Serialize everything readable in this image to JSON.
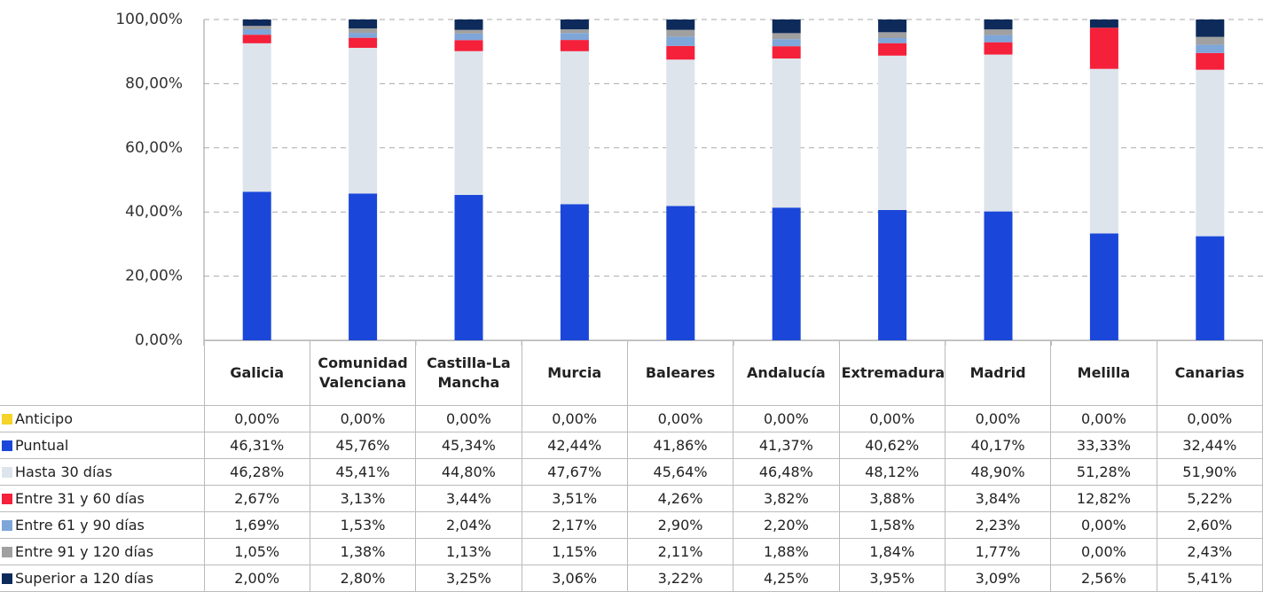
{
  "chart_data": {
    "type": "bar",
    "stacked": true,
    "categories": [
      "Galicia",
      "Comunidad Valenciana",
      "Castilla-La Mancha",
      "Murcia",
      "Baleares",
      "Andalucía",
      "Extremadura",
      "Madrid",
      "Melilla",
      "Canarias"
    ],
    "series": [
      {
        "name": "Anticipo",
        "color": "#f5d328",
        "values": [
          0,
          0,
          0,
          0,
          0,
          0,
          0,
          0,
          0,
          0
        ],
        "value_labels": [
          "0,00%",
          "0,00%",
          "0,00%",
          "0,00%",
          "0,00%",
          "0,00%",
          "0,00%",
          "0,00%",
          "0,00%",
          "0,00%"
        ]
      },
      {
        "name": "Puntual",
        "color": "#1a47d9",
        "values": [
          46.31,
          45.76,
          45.34,
          42.44,
          41.86,
          41.37,
          40.62,
          40.17,
          33.33,
          32.44
        ],
        "value_labels": [
          "46,31%",
          "45,76%",
          "45,34%",
          "42,44%",
          "41,86%",
          "41,37%",
          "40,62%",
          "40,17%",
          "33,33%",
          "32,44%"
        ]
      },
      {
        "name": "Hasta 30 días",
        "color": "#dde4ec",
        "values": [
          46.28,
          45.41,
          44.8,
          47.67,
          45.64,
          46.48,
          48.12,
          48.9,
          51.28,
          51.9
        ],
        "value_labels": [
          "46,28%",
          "45,41%",
          "44,80%",
          "47,67%",
          "45,64%",
          "46,48%",
          "48,12%",
          "48,90%",
          "51,28%",
          "51,90%"
        ]
      },
      {
        "name": "Entre 31 y 60 días",
        "color": "#f5203a",
        "values": [
          2.67,
          3.13,
          3.44,
          3.51,
          4.26,
          3.82,
          3.88,
          3.84,
          12.82,
          5.22
        ],
        "value_labels": [
          "2,67%",
          "3,13%",
          "3,44%",
          "3,51%",
          "4,26%",
          "3,82%",
          "3,88%",
          "3,84%",
          "12,82%",
          "5,22%"
        ]
      },
      {
        "name": "Entre 61 y 90 días",
        "color": "#7ea6d9",
        "values": [
          1.69,
          1.53,
          2.04,
          2.17,
          2.9,
          2.2,
          1.58,
          2.23,
          0,
          2.6
        ],
        "value_labels": [
          "1,69%",
          "1,53%",
          "2,04%",
          "2,17%",
          "2,90%",
          "2,20%",
          "1,58%",
          "2,23%",
          "0,00%",
          "2,60%"
        ]
      },
      {
        "name": "Entre 91 y 120 días",
        "color": "#a0a0a0",
        "values": [
          1.05,
          1.38,
          1.13,
          1.15,
          2.11,
          1.88,
          1.84,
          1.77,
          0,
          2.43
        ],
        "value_labels": [
          "1,05%",
          "1,38%",
          "1,13%",
          "1,15%",
          "2,11%",
          "1,88%",
          "1,84%",
          "1,77%",
          "0,00%",
          "2,43%"
        ]
      },
      {
        "name": "Superior a 120 días",
        "color": "#0d2a5a",
        "values": [
          2.0,
          2.8,
          3.25,
          3.06,
          3.22,
          4.25,
          3.95,
          3.09,
          2.56,
          5.41
        ],
        "value_labels": [
          "2,00%",
          "2,80%",
          "3,25%",
          "3,06%",
          "3,22%",
          "4,25%",
          "3,95%",
          "3,09%",
          "2,56%",
          "5,41%"
        ]
      }
    ],
    "ylim": [
      0,
      100
    ],
    "yticks": [
      {
        "value": 0,
        "label": "0,00%"
      },
      {
        "value": 20,
        "label": "20,00%"
      },
      {
        "value": 40,
        "label": "40,00%"
      },
      {
        "value": 60,
        "label": "60,00%"
      },
      {
        "value": 80,
        "label": "80,00%"
      },
      {
        "value": 100,
        "label": "100,00%"
      }
    ],
    "grid": true
  }
}
